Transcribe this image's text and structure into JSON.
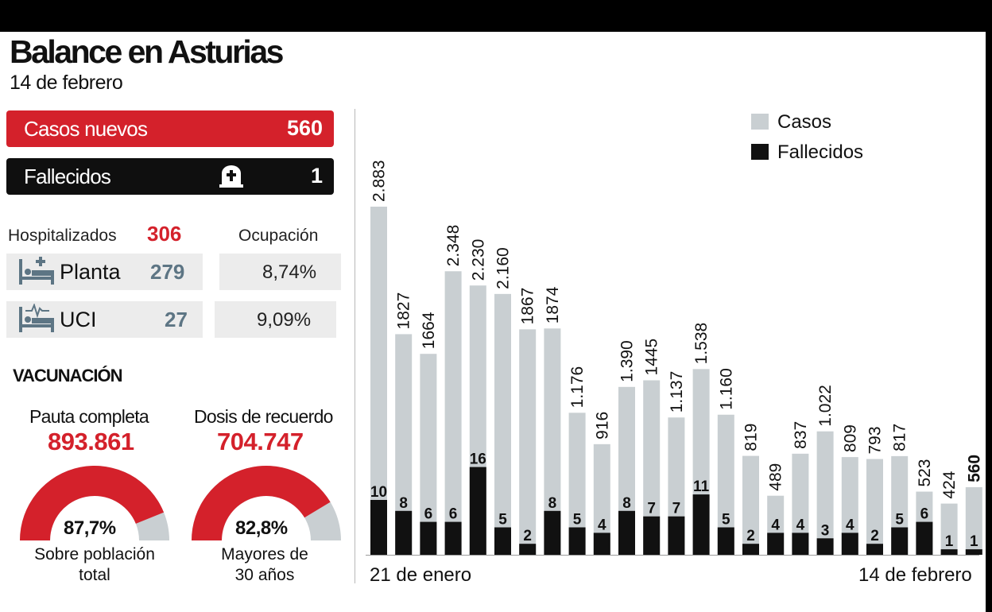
{
  "header": {
    "title": "Balance en Asturias",
    "date": "14 de febrero"
  },
  "summary": {
    "casos_label": "Casos nuevos",
    "casos_value": "560",
    "fallecidos_label": "Fallecidos",
    "fallecidos_value": "1"
  },
  "hospital": {
    "hosp_label": "Hospitalizados",
    "hosp_value": "306",
    "ocup_label": "Ocupación",
    "planta": {
      "label": "Planta",
      "value": "279",
      "ocupacion": "8,74%"
    },
    "uci": {
      "label": "UCI",
      "value": "27",
      "ocupacion": "9,09%"
    }
  },
  "vacunacion": {
    "title": "VACUNACIÓN",
    "pauta": {
      "label": "Pauta completa",
      "value": "893.861",
      "pct_label": "87,7%",
      "pct": 87.7,
      "caption1": "Sobre población",
      "caption2": "total"
    },
    "recuerdo": {
      "label": "Dosis de recuerdo",
      "value": "704.747",
      "pct_label": "82,8%",
      "pct": 82.8,
      "caption1": "Mayores de",
      "caption2": "30 años"
    }
  },
  "colors": {
    "red": "#d4212b",
    "casos": "#c9cfd2",
    "fallecidos": "#111111",
    "steel": "#5d7584"
  },
  "chart_data": {
    "type": "bar",
    "x_start_label": "21 de enero",
    "x_end_label": "14 de febrero",
    "ylim": [
      0,
      3000
    ],
    "series": [
      {
        "name": "Casos",
        "values": [
          2883,
          1827,
          1664,
          2348,
          2230,
          2160,
          1867,
          1874,
          1176,
          916,
          1390,
          1445,
          1137,
          1538,
          1160,
          819,
          489,
          837,
          1022,
          809,
          793,
          817,
          523,
          424,
          560
        ],
        "labels": [
          "2.883",
          "1827",
          "1664",
          "2.348",
          "2.230",
          "2.160",
          "1867",
          "1874",
          "1.176",
          "916",
          "1.390",
          "1445",
          "1.137",
          "1.538",
          "1.160",
          "819",
          "489",
          "837",
          "1.022",
          "809",
          "793",
          "817",
          "523",
          "424",
          "560"
        ]
      },
      {
        "name": "Fallecidos",
        "values": [
          10,
          8,
          6,
          6,
          16,
          5,
          2,
          8,
          5,
          4,
          8,
          7,
          7,
          11,
          5,
          2,
          4,
          4,
          3,
          4,
          2,
          5,
          6,
          1,
          1
        ]
      }
    ]
  }
}
